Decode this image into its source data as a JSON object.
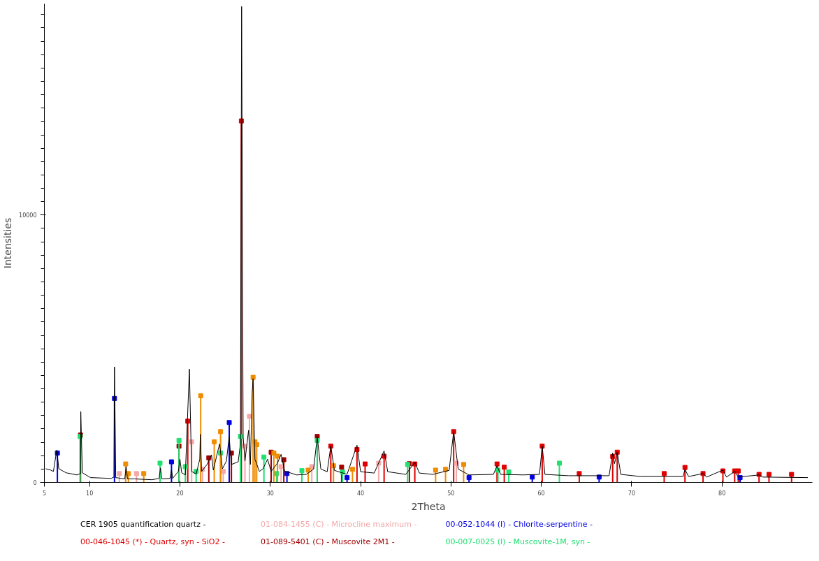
{
  "chart_data": {
    "type": "line",
    "xlabel": "2Theta",
    "ylabel": "Intensities",
    "xlim": [
      5,
      90
    ],
    "ylim": [
      0,
      17900
    ],
    "xticks": [
      5,
      10,
      20,
      30,
      40,
      50,
      60,
      70,
      80
    ],
    "yticks": [
      0,
      {
        "value": 500,
        "label": null
      },
      {
        "value": 1000,
        "label": null
      },
      {
        "value": 1500,
        "label": null
      },
      {
        "value": 2000,
        "label": null
      },
      {
        "value": 2500,
        "label": null
      },
      {
        "value": 3000,
        "label": null
      },
      {
        "value": 3500,
        "label": null
      },
      {
        "value": 4000,
        "label": null
      },
      {
        "value": 4500,
        "label": null
      },
      {
        "value": 5000,
        "label": null
      },
      {
        "value": 5500,
        "label": null
      },
      {
        "value": 6000,
        "label": null
      },
      {
        "value": 6500,
        "label": null
      },
      {
        "value": 7000,
        "label": null
      },
      {
        "value": 7500,
        "label": null
      },
      {
        "value": 8000,
        "label": null
      },
      {
        "value": 8500,
        "label": null
      },
      {
        "value": 9000,
        "label": null
      },
      {
        "value": 9500,
        "label": null
      },
      10000,
      {
        "value": 10500,
        "label": null
      },
      {
        "value": 11000,
        "label": null
      },
      {
        "value": 11500,
        "label": null
      },
      {
        "value": 12000,
        "label": null
      },
      {
        "value": 12500,
        "label": null
      },
      {
        "value": 13000,
        "label": null
      },
      {
        "value": 13500,
        "label": null
      },
      {
        "value": 14000,
        "label": null
      },
      {
        "value": 14500,
        "label": null
      },
      {
        "value": 15000,
        "label": null
      },
      {
        "value": 15500,
        "label": null
      },
      {
        "value": 16000,
        "label": null
      },
      {
        "value": 16500,
        "label": null
      },
      {
        "value": 17000,
        "label": null
      },
      {
        "value": 17500,
        "label": null
      }
    ],
    "grid": false,
    "legend": "bottom",
    "series": [
      {
        "name": "CER 1905 quantification quartz -",
        "color": "#000000",
        "x": [
          5.15,
          5.7,
          6.0,
          6.37,
          6.6,
          7.4,
          8.6,
          9.0,
          9.03,
          9.2,
          10.1,
          12.4,
          12.7,
          12.76,
          12.9,
          13.9,
          14.05,
          14.2,
          15.0,
          16.9,
          17.7,
          17.85,
          18.0,
          18.9,
          19.07,
          19.2,
          19.83,
          20.0,
          20.2,
          20.6,
          21.05,
          21.3,
          21.8,
          22.2,
          22.26,
          22.4,
          23.0,
          23.5,
          23.7,
          24.2,
          24.4,
          24.7,
          25.15,
          25.45,
          25.7,
          26.45,
          26.7,
          26.83,
          27.0,
          27.2,
          27.6,
          27.8,
          28.0,
          28.1,
          28.3,
          28.8,
          29.2,
          29.7,
          30.1,
          30.8,
          31.2,
          31.6,
          32.2,
          32.9,
          34.0,
          34.8,
          35.2,
          35.6,
          36.3,
          36.7,
          37.1,
          38.5,
          39.6,
          40.0,
          41.5,
          42.6,
          43.0,
          45.0,
          46.0,
          46.5,
          48.0,
          49.8,
          50.3,
          50.8,
          52.0,
          54.7,
          55.1,
          55.5,
          58.0,
          59.8,
          60.1,
          60.4,
          63.0,
          67.5,
          67.9,
          68.1,
          68.4,
          68.8,
          71.0,
          75.7,
          75.9,
          76.3,
          77.9,
          78.3,
          80.1,
          80.5,
          81.4,
          81.8,
          84.1,
          84.5,
          89.5
        ],
        "values": [
          510,
          460,
          410,
          1210,
          510,
          360,
          280,
          330,
          2650,
          360,
          180,
          150,
          200,
          4320,
          180,
          130,
          590,
          130,
          130,
          100,
          150,
          540,
          130,
          150,
          460,
          150,
          410,
          870,
          360,
          280,
          4240,
          410,
          310,
          870,
          1800,
          410,
          670,
          1030,
          460,
          1180,
          1440,
          510,
          800,
          1700,
          670,
          770,
          1440,
          17800,
          1700,
          800,
          1950,
          670,
          3370,
          3880,
          870,
          410,
          510,
          870,
          410,
          720,
          1050,
          410,
          360,
          280,
          300,
          500,
          1700,
          500,
          400,
          1360,
          450,
          300,
          1390,
          400,
          350,
          1180,
          400,
          300,
          750,
          350,
          300,
          450,
          1900,
          500,
          280,
          300,
          620,
          300,
          280,
          300,
          1360,
          300,
          250,
          250,
          1100,
          700,
          1130,
          300,
          220,
          220,
          490,
          220,
          330,
          200,
          460,
          200,
          410,
          200,
          280,
          200,
          180
        ]
      },
      {
        "name": "00-046-1045 (*) - Quartz, syn - SiO2 -",
        "color": "#e00000",
        "type": "lollipop",
        "marker": "square",
        "x": [
          20.87,
          26.8,
          36.7,
          39.6,
          40.5,
          42.6,
          46.0,
          50.3,
          55.1,
          55.9,
          60.1,
          64.2,
          67.9,
          68.4,
          73.6,
          75.9,
          77.9,
          80.1,
          81.4,
          81.8,
          84.1,
          85.2,
          87.7
        ],
        "values": [
          2290,
          13520,
          1360,
          1230,
          690,
          980,
          690,
          1900,
          690,
          570,
          1360,
          330,
          970,
          1130,
          330,
          560,
          330,
          430,
          430,
          430,
          300,
          300,
          300
        ]
      },
      {
        "name": "01-084-1455 (C) - Microcline maximum -",
        "color": "#f4a8a8",
        "type": "lollipop",
        "marker": "square",
        "x": [
          13.3,
          15.2,
          21.3,
          22.5,
          24.8,
          27.2,
          27.7,
          31.2,
          34.6,
          42.0,
          50.6
        ],
        "values": [
          330,
          330,
          1520,
          490,
          410,
          1360,
          2470,
          590,
          590,
          720,
          720
        ]
      },
      {
        "name": "01-089-5401 (C) - Muscovite 2M1 -",
        "color": "#a00000",
        "type": "lollipop",
        "marker": "square",
        "x": [
          9.0,
          19.9,
          23.2,
          25.7,
          30.1,
          31.5,
          35.2,
          37.9,
          45.4
        ],
        "values": [
          1770,
          1360,
          920,
          1100,
          1130,
          850,
          1720,
          570,
          700
        ]
      },
      {
        "name": "00-052-1044 (I) - Chlorite-serpentine -",
        "color": "#0000e0",
        "type": "lollipop",
        "marker": "square",
        "x": [
          6.44,
          12.76,
          19.07,
          25.46,
          31.85,
          38.5,
          52.0,
          59.0,
          66.4,
          82.0
        ],
        "values": [
          1100,
          3140,
          770,
          2240,
          330,
          180,
          180,
          200,
          200,
          180
        ]
      },
      {
        "name": "00-007-0025 (I) - Muscovite-1M, syn -",
        "color": "#20e070",
        "type": "lollipop",
        "marker": "square",
        "x": [
          8.95,
          17.8,
          19.9,
          20.6,
          21.8,
          24.5,
          26.7,
          29.3,
          30.7,
          33.5,
          35.2,
          38.0,
          45.2,
          55.2,
          56.4,
          62.0
        ],
        "values": [
          1720,
          720,
          1570,
          590,
          410,
          1100,
          1720,
          950,
          330,
          440,
          1570,
          390,
          670,
          460,
          390,
          720
        ]
      },
      {
        "color": "#f08c00",
        "type": "lollipop",
        "marker": "square",
        "x": [
          14.0,
          14.3,
          16.0,
          22.3,
          23.8,
          24.5,
          28.1,
          28.3,
          28.5,
          30.4,
          30.8,
          34.2,
          37.0,
          39.1,
          48.3,
          49.4,
          51.4
        ],
        "values": [
          690,
          330,
          330,
          3240,
          1520,
          1900,
          3930,
          1520,
          1410,
          1100,
          980,
          460,
          620,
          490,
          460,
          490,
          670
        ]
      }
    ]
  }
}
